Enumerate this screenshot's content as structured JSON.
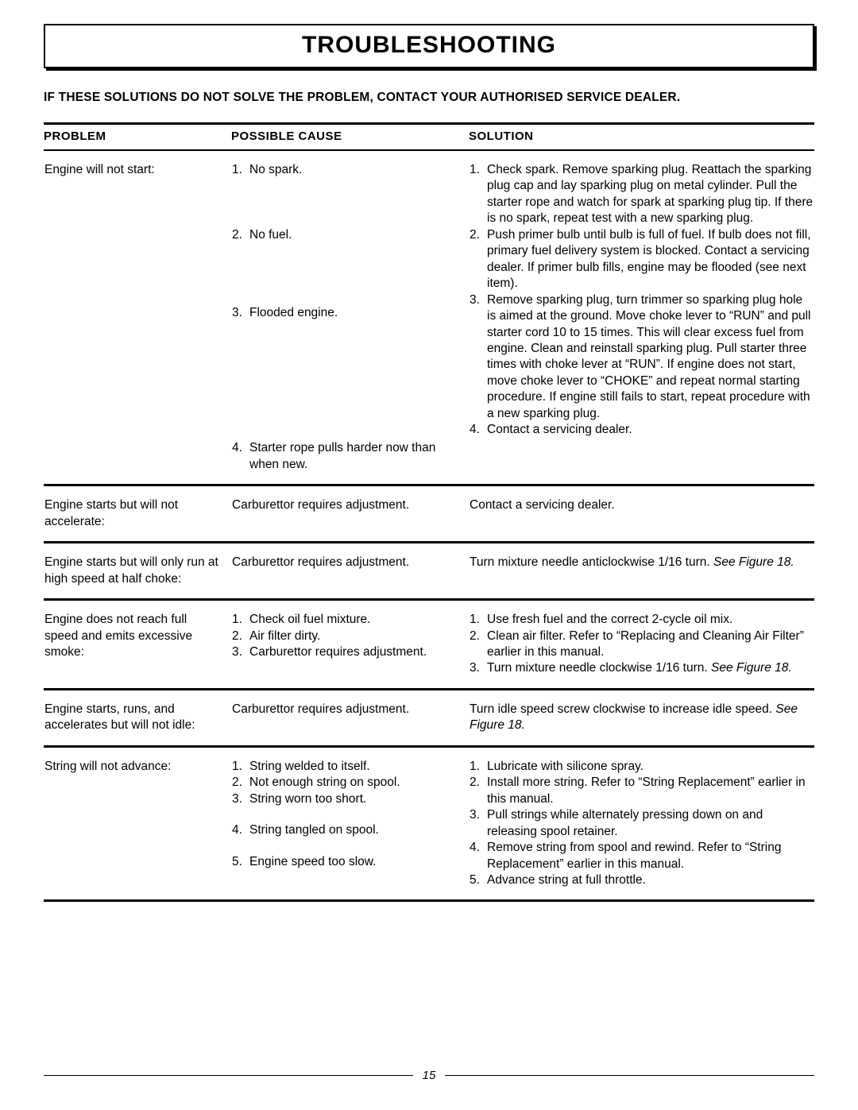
{
  "title": "TROUBLESHOOTING",
  "intro": "IF THESE SOLUTIONS DO NOT SOLVE THE PROBLEM, CONTACT YOUR AUTHORISED SERVICE DEALER.",
  "headers": {
    "problem": "PROBLEM",
    "cause": "POSSIBLE CAUSE",
    "solution": "SOLUTION"
  },
  "rows": [
    {
      "problem": "Engine will not start:",
      "causes": [
        "No spark.",
        "No fuel.",
        "Flooded engine.",
        "Starter rope pulls harder now than when new."
      ],
      "solutions": [
        "Check spark. Remove sparking plug. Reattach the sparking plug cap and lay sparking plug on metal cylinder. Pull the starter rope and watch for spark at sparking plug tip. If there is no spark, repeat test with a new sparking plug.",
        "Push primer bulb until bulb is full of fuel. If bulb does not fill, primary fuel delivery system is blocked. Contact a servicing dealer. If primer bulb fills, engine may be flooded (see next item).",
        "Remove sparking plug, turn trimmer so sparking plug hole is aimed at the ground. Move choke lever to “RUN” and pull starter cord 10 to 15 times. This will clear excess fuel from engine. Clean and reinstall sparking plug. Pull starter three times with choke lever at “RUN”. If engine does not start, move choke lever to “CHOKE” and repeat normal starting procedure. If engine still fails to start, repeat procedure with a new sparking plug.",
        "Contact a servicing dealer."
      ]
    },
    {
      "problem": "Engine starts but will not accelerate:",
      "cause_plain": "Carburettor requires adjustment.",
      "solution_plain": "Contact a servicing dealer."
    },
    {
      "problem": "Engine starts but will only run at high speed at half choke:",
      "cause_plain": "Carburettor requires adjustment.",
      "solution_html": "Turn mixture needle anticlockwise 1/16 turn. <span class=\"italic\">See Figure 18.</span>"
    },
    {
      "problem": "Engine does not reach full speed and emits excessive smoke:",
      "causes": [
        "Check oil fuel mixture.",
        "Air filter dirty.",
        "Carburettor requires adjustment."
      ],
      "solutions_html": [
        "Use fresh fuel and the correct 2-cycle oil mix.",
        "Clean air filter. Refer to “Replacing and Cleaning Air Filter” earlier in this manual.",
        "Turn mixture needle clockwise 1/16 turn. <span class=\"italic\">See Figure 18.</span>"
      ]
    },
    {
      "problem": "Engine starts, runs, and accelerates but will not idle:",
      "cause_plain": "Carburettor requires adjustment.",
      "solution_html": "Turn idle speed screw clockwise to increase idle speed. <span class=\"italic\">See Figure 18.</span>"
    },
    {
      "problem": "String will not advance:",
      "causes": [
        "String welded to itself.",
        "Not enough string on spool.",
        "String worn too short.",
        "String tangled on spool.",
        "Engine speed too slow."
      ],
      "solutions": [
        "Lubricate with silicone spray.",
        "Install more string. Refer to “String Replacement” earlier in this manual.",
        "Pull strings while alternately pressing down on and releasing spool retainer.",
        "Remove string from spool and rewind. Refer to “String Replacement” earlier in this manual.",
        "Advance string at full throttle."
      ]
    }
  ],
  "page_number": "15"
}
